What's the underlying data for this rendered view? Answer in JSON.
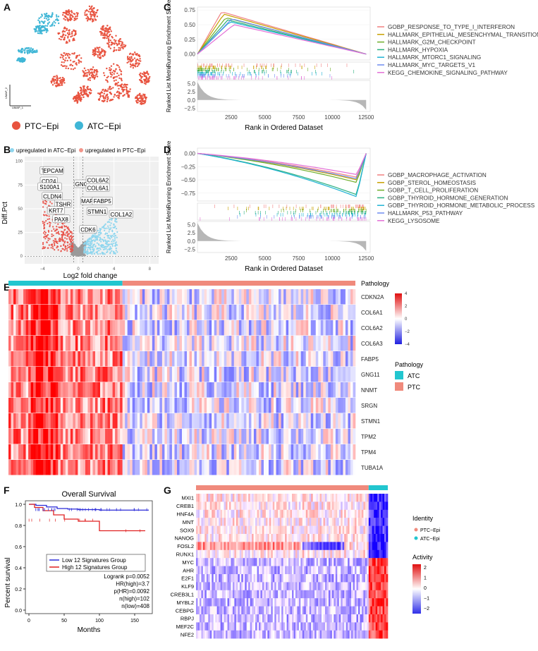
{
  "panels": {
    "a": "A",
    "b": "B",
    "c": "C",
    "d": "D",
    "e": "E",
    "f": "F",
    "g": "G"
  },
  "umap": {
    "legend": [
      {
        "label": "PTC−Epi",
        "color": "#e8533f"
      },
      {
        "label": "ATC−Epi",
        "color": "#3fb6d6"
      }
    ],
    "x_axis": "UMAP_1",
    "y_axis": "UMAP_2"
  },
  "volcano": {
    "legend": [
      {
        "label": "upregulated in ATC−Epi",
        "color": "#8fd6ee"
      },
      {
        "label": "upregulated in PTC−Epi",
        "color": "#f2958a"
      }
    ],
    "ylabel": "Diff.Pct",
    "xlabel": "Log2 fold change",
    "xticks": [
      "−4",
      "0",
      "4",
      "8"
    ],
    "yticks": [
      "0",
      "25",
      "50",
      "75",
      "100"
    ],
    "genes": [
      {
        "name": "TG",
        "x": -3.7,
        "y": 90
      },
      {
        "name": "EPCAM",
        "x": -2.8,
        "y": 90
      },
      {
        "name": "CD24",
        "x": -3.3,
        "y": 79
      },
      {
        "name": "S100A1",
        "x": -3.2,
        "y": 73
      },
      {
        "name": "CLDN4",
        "x": -2.9,
        "y": 63
      },
      {
        "name": "TSHR",
        "x": -1.7,
        "y": 55
      },
      {
        "name": "KRT7",
        "x": -2.5,
        "y": 48
      },
      {
        "name": "PAX8",
        "x": -1.9,
        "y": 39
      },
      {
        "name": "GNG11",
        "x": 0.7,
        "y": 76
      },
      {
        "name": "COL6A2",
        "x": 2.2,
        "y": 80
      },
      {
        "name": "COL6A1",
        "x": 2.2,
        "y": 72
      },
      {
        "name": "MAP1B",
        "x": 1.4,
        "y": 58
      },
      {
        "name": "FABP5",
        "x": 2.7,
        "y": 58
      },
      {
        "name": "STMN1",
        "x": 2.1,
        "y": 47
      },
      {
        "name": "COL1A2",
        "x": 4.8,
        "y": 44
      },
      {
        "name": "CDK6",
        "x": 1.1,
        "y": 28
      }
    ]
  },
  "gsea_c": {
    "ylabel_top": "Running Enrichment Score",
    "ylabel_bottom": "Ranked List Metric",
    "xlabel": "Rank in Ordered Dataset",
    "xticks": [
      "2500",
      "5000",
      "7500",
      "10000",
      "12500"
    ],
    "yticks": [
      "0.75",
      "0.50",
      "0.25",
      "0.00"
    ],
    "bticks": [
      "5.0",
      "2.5",
      "0.0",
      "−2.5"
    ],
    "sets": [
      {
        "name": "GOBP_RESPONSE_TO_TYPE_I_INTERFERON",
        "color": "#f08080"
      },
      {
        "name": "HALLMARK_EPITHELIAL_MESENCHYMAL_TRANSITION",
        "color": "#c8a000"
      },
      {
        "name": "HALLMARK_G2M_CHECKPOINT",
        "color": "#6fae2a"
      },
      {
        "name": "HALLMARK_HYPOXIA",
        "color": "#2bb07f"
      },
      {
        "name": "HALLMARK_MTORC1_SIGNALING",
        "color": "#1fb3d4"
      },
      {
        "name": "HALLMARK_MYC_TARGETS_V1",
        "color": "#6f8cf0"
      },
      {
        "name": "KEGG_CHEMOKINE_SIGNALING_PATHWAY",
        "color": "#e36fd6"
      }
    ]
  },
  "gsea_d": {
    "ylabel_top": "Running Enrichment Score",
    "ylabel_bottom": "Ranked List Metric",
    "xlabel": "Rank in Ordered Dataset",
    "xticks": [
      "2500",
      "5000",
      "7500",
      "10000",
      "12500"
    ],
    "yticks": [
      "0.00",
      "−0.25",
      "−0.50",
      "−0.75"
    ],
    "bticks": [
      "5.0",
      "2.5",
      "0.0",
      "−2.5"
    ],
    "sets": [
      {
        "name": "GOBP_MACROPHAGE_ACTIVATION",
        "color": "#f08080"
      },
      {
        "name": "GOBP_STEROL_HOMEOSTASIS",
        "color": "#c8a000"
      },
      {
        "name": "GOBP_T_CELL_PROLIFERATION",
        "color": "#6fae2a"
      },
      {
        "name": "GOBP_THYROID_HORMONE_GENERATION",
        "color": "#2bb07f"
      },
      {
        "name": "GOBP_THYROID_HORMONE_METABOLIC_PROCESS",
        "color": "#1fb3d4"
      },
      {
        "name": "HALLMARK_P53_PATHWAY",
        "color": "#6f8cf0"
      },
      {
        "name": "KEGG_LYSOSOME",
        "color": "#e36fd6"
      }
    ]
  },
  "heatmap_e": {
    "annotation_label": "Pathology",
    "genes": [
      "CDKN2A",
      "COL6A1",
      "COL6A2",
      "COL6A3",
      "FABP5",
      "GNG11",
      "NNMT",
      "SRGN",
      "STMN1",
      "TPM2",
      "TPM4",
      "TUBA1A"
    ],
    "colorbar_ticks": [
      "4",
      "2",
      "0",
      "−2",
      "−4"
    ],
    "legend_title": "Pathology",
    "legend": [
      {
        "label": "ATC",
        "color": "#22c6cf"
      },
      {
        "label": "PTC",
        "color": "#f08a7c"
      }
    ]
  },
  "survival": {
    "title": "Overall Survival",
    "ylabel": "Percent survival",
    "xlabel": "Months",
    "xticks": [
      "0",
      "50",
      "100",
      "150"
    ],
    "yticks": [
      "0.0",
      "0.2",
      "0.4",
      "0.6",
      "0.8",
      "1.0"
    ],
    "legend": [
      {
        "label": "Low 12 Signatures Group",
        "color": "#2a2ad8"
      },
      {
        "label": "High 12 Signatures Group",
        "color": "#e02020"
      }
    ],
    "stats": [
      "Logrank p=0.0052",
      "HR(high)=3.7",
      "p(HR)=0.0092",
      "n(high)=102",
      "n(low)=408"
    ]
  },
  "heatmap_g": {
    "genes": [
      "MXI1",
      "CREB1",
      "HNF4A",
      "MNT",
      "SOX9",
      "NANOG",
      "FOSL2",
      "RUNX1",
      "MYC",
      "AHR",
      "E2F1",
      "KLF9",
      "CREB3L1",
      "MYBL2",
      "CEBPG",
      "RBPJ",
      "MEF2C",
      "NFE2"
    ],
    "identity_title": "Identity",
    "identity": [
      {
        "label": "PTC−Epi",
        "color": "#f08a7c"
      },
      {
        "label": "ATC−Epi",
        "color": "#22c6cf"
      }
    ],
    "activity_title": "Activity",
    "activity_ticks": [
      "2",
      "1",
      "0",
      "−1",
      "−2"
    ]
  }
}
